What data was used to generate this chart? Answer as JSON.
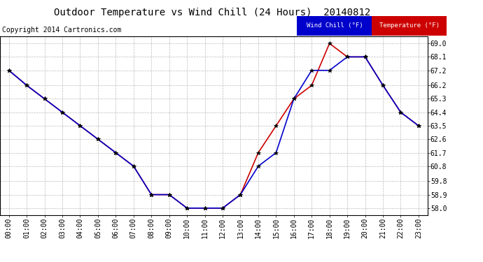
{
  "title": "Outdoor Temperature vs Wind Chill (24 Hours)  20140812",
  "copyright": "Copyright 2014 Cartronics.com",
  "background_color": "#ffffff",
  "plot_bg_color": "#ffffff",
  "grid_color": "#bbbbbb",
  "hours": [
    "00:00",
    "01:00",
    "02:00",
    "03:00",
    "04:00",
    "05:00",
    "06:00",
    "07:00",
    "08:00",
    "09:00",
    "10:00",
    "11:00",
    "12:00",
    "13:00",
    "14:00",
    "15:00",
    "16:00",
    "17:00",
    "18:00",
    "19:00",
    "20:00",
    "21:00",
    "22:00",
    "23:00"
  ],
  "temperature": [
    67.2,
    66.2,
    65.3,
    64.4,
    63.5,
    62.6,
    61.7,
    60.8,
    58.9,
    58.9,
    58.0,
    58.0,
    58.0,
    58.9,
    61.7,
    63.5,
    65.3,
    66.2,
    69.0,
    68.1,
    68.1,
    66.2,
    64.4,
    63.5
  ],
  "wind_chill": [
    67.2,
    66.2,
    65.3,
    64.4,
    63.5,
    62.6,
    61.7,
    60.8,
    58.9,
    58.9,
    58.0,
    58.0,
    58.0,
    58.9,
    60.8,
    61.7,
    65.3,
    67.2,
    67.2,
    68.1,
    68.1,
    66.2,
    64.4,
    63.5
  ],
  "ylim": [
    57.55,
    69.45
  ],
  "yticks": [
    58.0,
    58.9,
    59.8,
    60.8,
    61.7,
    62.6,
    63.5,
    64.4,
    65.3,
    66.2,
    67.2,
    68.1,
    69.0
  ],
  "temp_color": "#cc0000",
  "wind_color": "#0000cc",
  "marker": "*",
  "marker_color": "#000000",
  "marker_size": 4,
  "title_fontsize": 10,
  "tick_fontsize": 7,
  "copyright_fontsize": 7
}
